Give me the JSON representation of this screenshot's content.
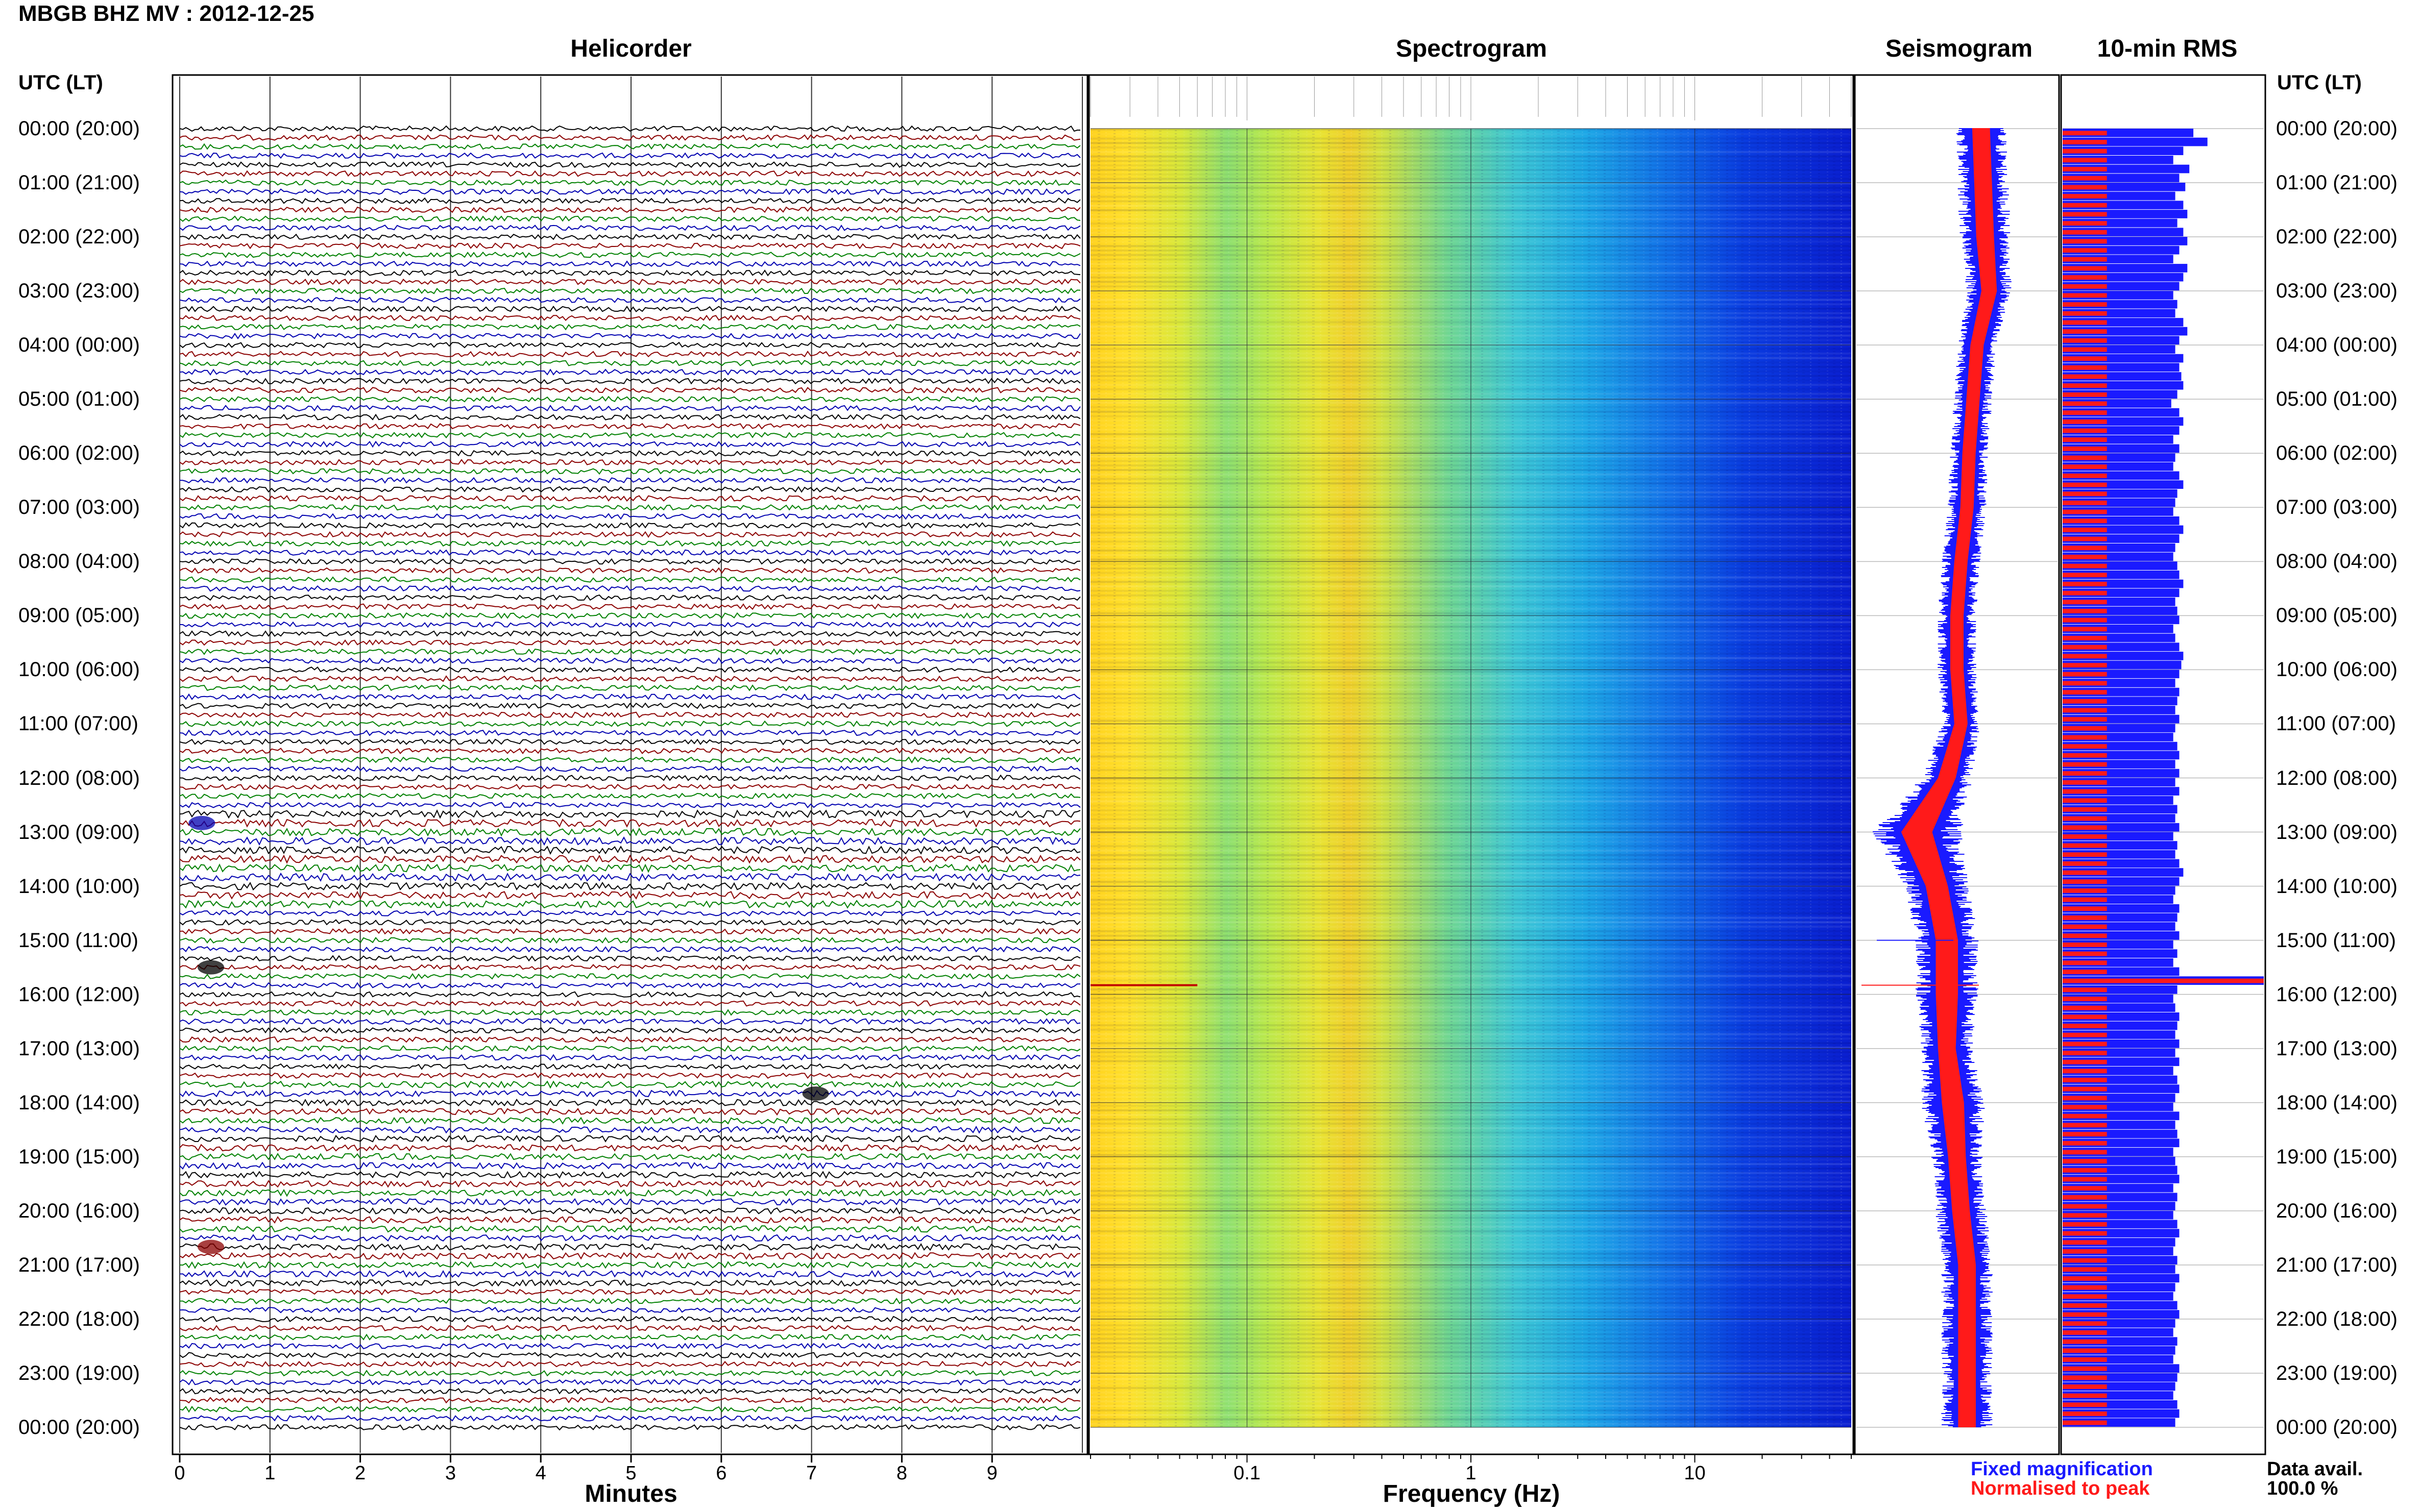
{
  "header": {
    "title": "MBGB BHZ MV : 2012-12-25"
  },
  "panels": {
    "helicorder": "Helicorder",
    "spectrogram": "Spectrogram",
    "seismogram": "Seismogram",
    "rms": "10-min RMS"
  },
  "time_axis": {
    "header_left": "UTC (LT)",
    "header_right": "UTC (LT)",
    "labels": [
      "00:00 (20:00)",
      "01:00 (21:00)",
      "02:00 (22:00)",
      "03:00 (23:00)",
      "04:00 (00:00)",
      "05:00 (01:00)",
      "06:00 (02:00)",
      "07:00 (03:00)",
      "08:00 (04:00)",
      "09:00 (05:00)",
      "10:00 (06:00)",
      "11:00 (07:00)",
      "12:00 (08:00)",
      "13:00 (09:00)",
      "14:00 (10:00)",
      "15:00 (11:00)",
      "16:00 (12:00)",
      "17:00 (13:00)",
      "18:00 (14:00)",
      "19:00 (15:00)",
      "20:00 (16:00)",
      "21:00 (17:00)",
      "22:00 (18:00)",
      "23:00 (19:00)",
      "00:00 (20:00)"
    ]
  },
  "helicorder_axis": {
    "xlabel": "Minutes",
    "ticks": [
      "0",
      "1",
      "2",
      "3",
      "4",
      "5",
      "6",
      "7",
      "8",
      "9"
    ]
  },
  "spectrogram_axis": {
    "xlabel": "Frequency (Hz)",
    "ticks": [
      "0.1",
      "1",
      "10"
    ]
  },
  "legend": {
    "fixed": "Fixed magnification",
    "normalised": "Normalised to peak",
    "fixed_color": "#1a1aff",
    "normalised_color": "#ff1a1a"
  },
  "data_availability": {
    "label": "Data avail.",
    "value": "100.0 %"
  },
  "trace_colors": [
    "#000000",
    "#8b0000",
    "#008000",
    "#0000b0"
  ],
  "chart_data": [
    {
      "type": "line",
      "panel": "helicorder",
      "xlabel": "Minutes",
      "xlim": [
        0,
        10
      ],
      "rows_per_hour": 6,
      "row_minutes": 10,
      "events": [
        {
          "utc": "12:50",
          "minute": 0.2,
          "note": "large blue burst"
        },
        {
          "utc": "15:30",
          "minute": 0.3,
          "note": "long-period excursion"
        },
        {
          "utc": "17:50",
          "minute": 7.0,
          "note": "noisy black segment"
        },
        {
          "utc": "20:40",
          "minute": 0.3,
          "note": "dark red burst"
        }
      ]
    },
    {
      "type": "heatmap",
      "panel": "spectrogram",
      "xlabel": "Frequency (Hz)",
      "xscale": "log",
      "xlim": [
        0.02,
        50
      ],
      "ylim_utc": [
        "00:00",
        "24:00"
      ],
      "colormap": "jet",
      "description_energy_by_band": [
        {
          "freq_hz": 0.03,
          "level": 0.8
        },
        {
          "freq_hz": 0.1,
          "level": 0.6
        },
        {
          "freq_hz": 0.25,
          "level": 0.72
        },
        {
          "freq_hz": 1,
          "level": 0.45
        },
        {
          "freq_hz": 3,
          "level": 0.28
        },
        {
          "freq_hz": 10,
          "level": 0.15
        },
        {
          "freq_hz": 40,
          "level": 0.08
        }
      ]
    },
    {
      "type": "line",
      "panel": "seismogram",
      "series": [
        {
          "name": "Fixed magnification",
          "color": "#1a1aff"
        },
        {
          "name": "Normalised to peak",
          "color": "#ff1a1a"
        }
      ],
      "hour_centres": [
        0.62,
        0.63,
        0.64,
        0.66,
        0.6,
        0.58,
        0.56,
        0.55,
        0.52,
        0.5,
        0.5,
        0.52,
        0.45,
        0.3,
        0.4,
        0.45,
        0.45,
        0.45,
        0.48,
        0.5,
        0.52,
        0.55,
        0.55,
        0.55,
        0.55
      ],
      "hour_widths": [
        0.08,
        0.08,
        0.08,
        0.07,
        0.06,
        0.06,
        0.06,
        0.06,
        0.06,
        0.06,
        0.06,
        0.06,
        0.08,
        0.14,
        0.1,
        0.1,
        0.1,
        0.08,
        0.1,
        0.08,
        0.08,
        0.08,
        0.08,
        0.08,
        0.08
      ]
    },
    {
      "type": "bar",
      "panel": "rms",
      "series": [
        {
          "name": "Fixed magnification",
          "color": "#1a1aff"
        },
        {
          "name": "Normalised to peak",
          "color": "#ff1a1a"
        }
      ],
      "fixed_relative": [
        0.65,
        0.72,
        0.6,
        0.55,
        0.63,
        0.58,
        0.61,
        0.56,
        0.6,
        0.62,
        0.57,
        0.6,
        0.62,
        0.58,
        0.55,
        0.62,
        0.6,
        0.58,
        0.55,
        0.57,
        0.56,
        0.6,
        0.62,
        0.58,
        0.56,
        0.6,
        0.58,
        0.59,
        0.6,
        0.57,
        0.54,
        0.58,
        0.6,
        0.58,
        0.55,
        0.58,
        0.56,
        0.55,
        0.58,
        0.6,
        0.57,
        0.56,
        0.55,
        0.58,
        0.6,
        0.58,
        0.56,
        0.55,
        0.57,
        0.58,
        0.6,
        0.58,
        0.56,
        0.57,
        0.58,
        0.55,
        0.56,
        0.58,
        0.6,
        0.59,
        0.58,
        0.56,
        0.58,
        0.57,
        0.56,
        0.58,
        0.56,
        0.55,
        0.57,
        0.58,
        0.56,
        0.58,
        0.56,
        0.58,
        0.55,
        0.57,
        0.56,
        0.58,
        0.55,
        0.57,
        0.56,
        0.58,
        0.6,
        0.58,
        0.56,
        0.55,
        0.58,
        0.57,
        0.56,
        0.58,
        0.55,
        0.57,
        0.55,
        0.58,
        1.0,
        0.57,
        0.55,
        0.56,
        0.58,
        0.57,
        0.56,
        0.58,
        0.56,
        0.58,
        0.55,
        0.57,
        0.58,
        0.56,
        0.55,
        0.58,
        0.56,
        0.57,
        0.58,
        0.55,
        0.56,
        0.57,
        0.58,
        0.55,
        0.57,
        0.56,
        0.55,
        0.57,
        0.58,
        0.56,
        0.55,
        0.57,
        0.56,
        0.58,
        0.56,
        0.55,
        0.57,
        0.58,
        0.56,
        0.55,
        0.57,
        0.56,
        0.55,
        0.58,
        0.57,
        0.56,
        0.55,
        0.57,
        0.58,
        0.56
      ],
      "normalised_relative": 0.22,
      "peak_utc": "15:50"
    }
  ]
}
